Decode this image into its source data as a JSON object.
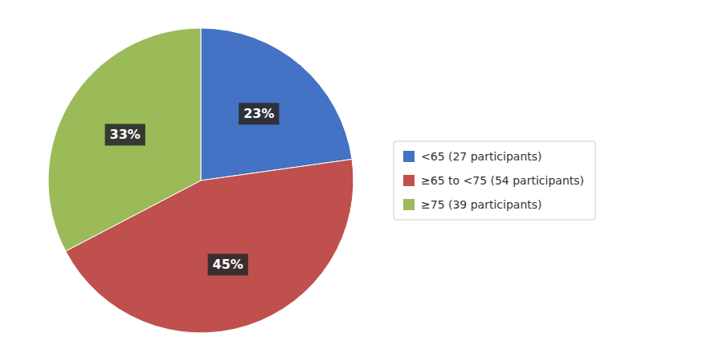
{
  "chart_data": {
    "type": "pie",
    "categories": [
      "<65 (27 participants)",
      "≥65 to <75 (54 participants)",
      "≥75 (39 participants)"
    ],
    "values": [
      23,
      45,
      33
    ],
    "value_labels": [
      "23%",
      "45%",
      "33%"
    ],
    "colors": [
      "#4472C4",
      "#C0504D",
      "#9BBB59"
    ],
    "data_labels": true,
    "legend": "right"
  }
}
